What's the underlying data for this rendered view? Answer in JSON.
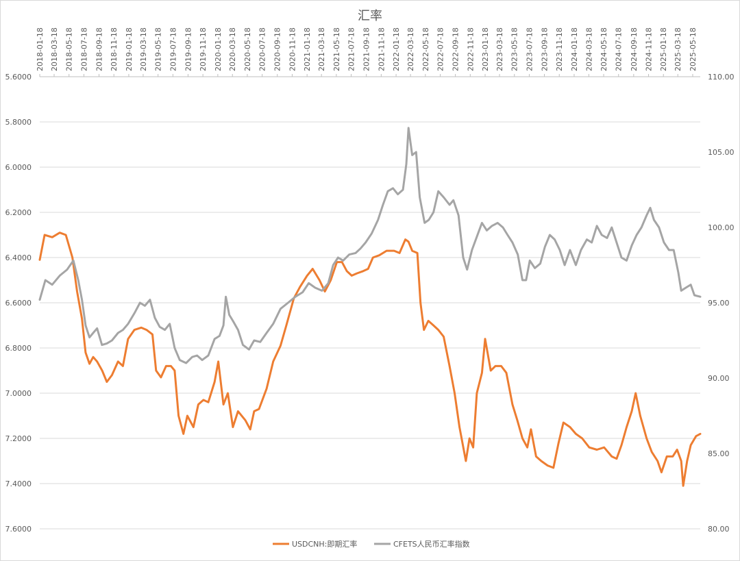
{
  "chart_data": {
    "type": "line",
    "title": "汇率",
    "x_tick_labels": [
      "2018-01-18",
      "2018-03-18",
      "2018-05-18",
      "2018-07-18",
      "2018-09-18",
      "2018-11-18",
      "2019-01-18",
      "2019-03-18",
      "2019-05-18",
      "2019-07-18",
      "2019-09-18",
      "2019-11-18",
      "2020-01-18",
      "2020-03-18",
      "2020-05-18",
      "2020-07-18",
      "2020-09-18",
      "2020-11-18",
      "2021-01-18",
      "2021-03-18",
      "2021-05-18",
      "2021-07-18",
      "2021-09-18",
      "2021-11-18",
      "2022-01-18",
      "2022-03-18",
      "2022-05-18",
      "2022-07-18",
      "2022-09-18",
      "2022-11-18",
      "2023-01-18",
      "2023-03-18",
      "2023-05-18",
      "2023-07-18",
      "2023-09-18",
      "2023-11-18",
      "2024-01-18",
      "2024-03-18",
      "2024-05-18",
      "2024-07-18",
      "2024-09-18",
      "2024-11-18",
      "2025-01-18",
      "2025-03-18",
      "2025-05-18"
    ],
    "x_range": [
      "2018-01-18",
      "2025-06-18"
    ],
    "y_left": {
      "min": 5.6,
      "max": 7.6,
      "step": 0.2,
      "inverted": true,
      "tick_labels": [
        "5.6000",
        "5.8000",
        "6.0000",
        "6.2000",
        "6.4000",
        "6.6000",
        "6.8000",
        "7.0000",
        "7.2000",
        "7.4000",
        "7.6000"
      ]
    },
    "y_right": {
      "min": 80,
      "max": 110,
      "step": 5,
      "tick_labels": [
        "110.00",
        "105.00",
        "100.00",
        "95.00",
        "90.00",
        "85.00",
        "80.00"
      ]
    },
    "grid": true,
    "legend_position": "bottom",
    "series": [
      {
        "name": "USDCNH:即期汇率",
        "axis": "left",
        "color": "#ED7D31",
        "points": [
          [
            "2018-01-18",
            6.41
          ],
          [
            "2018-02-07",
            6.3
          ],
          [
            "2018-03-10",
            6.31
          ],
          [
            "2018-04-10",
            6.29
          ],
          [
            "2018-05-05",
            6.3
          ],
          [
            "2018-06-01",
            6.4
          ],
          [
            "2018-06-20",
            6.55
          ],
          [
            "2018-07-10",
            6.67
          ],
          [
            "2018-07-25",
            6.82
          ],
          [
            "2018-08-10",
            6.87
          ],
          [
            "2018-08-25",
            6.84
          ],
          [
            "2018-09-10",
            6.86
          ],
          [
            "2018-10-01",
            6.9
          ],
          [
            "2018-10-20",
            6.95
          ],
          [
            "2018-11-10",
            6.92
          ],
          [
            "2018-12-05",
            6.86
          ],
          [
            "2018-12-25",
            6.88
          ],
          [
            "2019-01-15",
            6.76
          ],
          [
            "2019-02-10",
            6.72
          ],
          [
            "2019-03-10",
            6.71
          ],
          [
            "2019-04-01",
            6.72
          ],
          [
            "2019-04-25",
            6.74
          ],
          [
            "2019-05-10",
            6.9
          ],
          [
            "2019-05-30",
            6.93
          ],
          [
            "2019-06-20",
            6.88
          ],
          [
            "2019-07-10",
            6.88
          ],
          [
            "2019-07-25",
            6.9
          ],
          [
            "2019-08-10",
            7.1
          ],
          [
            "2019-08-30",
            7.18
          ],
          [
            "2019-09-15",
            7.1
          ],
          [
            "2019-10-10",
            7.15
          ],
          [
            "2019-10-30",
            7.05
          ],
          [
            "2019-11-20",
            7.03
          ],
          [
            "2019-12-10",
            7.04
          ],
          [
            "2020-01-05",
            6.95
          ],
          [
            "2020-01-20",
            6.86
          ],
          [
            "2020-02-10",
            7.05
          ],
          [
            "2020-02-28",
            7.0
          ],
          [
            "2020-03-20",
            7.15
          ],
          [
            "2020-04-10",
            7.08
          ],
          [
            "2020-05-10",
            7.12
          ],
          [
            "2020-05-30",
            7.16
          ],
          [
            "2020-06-15",
            7.08
          ],
          [
            "2020-07-05",
            7.07
          ],
          [
            "2020-08-05",
            6.98
          ],
          [
            "2020-09-01",
            6.86
          ],
          [
            "2020-10-01",
            6.79
          ],
          [
            "2020-10-25",
            6.7
          ],
          [
            "2020-11-25",
            6.58
          ],
          [
            "2020-12-20",
            6.53
          ],
          [
            "2021-01-18",
            6.48
          ],
          [
            "2021-02-10",
            6.45
          ],
          [
            "2021-03-10",
            6.5
          ],
          [
            "2021-04-01",
            6.55
          ],
          [
            "2021-04-25",
            6.5
          ],
          [
            "2021-05-20",
            6.42
          ],
          [
            "2021-06-10",
            6.42
          ],
          [
            "2021-06-30",
            6.46
          ],
          [
            "2021-07-20",
            6.48
          ],
          [
            "2021-08-10",
            6.47
          ],
          [
            "2021-09-05",
            6.46
          ],
          [
            "2021-09-25",
            6.45
          ],
          [
            "2021-10-15",
            6.4
          ],
          [
            "2021-11-10",
            6.39
          ],
          [
            "2021-12-10",
            6.37
          ],
          [
            "2022-01-10",
            6.37
          ],
          [
            "2022-02-01",
            6.38
          ],
          [
            "2022-02-25",
            6.32
          ],
          [
            "2022-03-10",
            6.33
          ],
          [
            "2022-03-25",
            6.37
          ],
          [
            "2022-04-15",
            6.38
          ],
          [
            "2022-04-28",
            6.6
          ],
          [
            "2022-05-12",
            6.72
          ],
          [
            "2022-05-30",
            6.68
          ],
          [
            "2022-06-20",
            6.7
          ],
          [
            "2022-07-10",
            6.72
          ],
          [
            "2022-08-01",
            6.75
          ],
          [
            "2022-08-25",
            6.88
          ],
          [
            "2022-09-15",
            7.0
          ],
          [
            "2022-10-05",
            7.15
          ],
          [
            "2022-10-31",
            7.3
          ],
          [
            "2022-11-15",
            7.2
          ],
          [
            "2022-11-30",
            7.24
          ],
          [
            "2022-12-15",
            7.0
          ],
          [
            "2023-01-05",
            6.91
          ],
          [
            "2023-01-18",
            6.76
          ],
          [
            "2023-02-10",
            6.9
          ],
          [
            "2023-03-01",
            6.88
          ],
          [
            "2023-03-25",
            6.88
          ],
          [
            "2023-04-15",
            6.91
          ],
          [
            "2023-05-10",
            7.05
          ],
          [
            "2023-05-30",
            7.12
          ],
          [
            "2023-06-20",
            7.2
          ],
          [
            "2023-07-10",
            7.24
          ],
          [
            "2023-07-25",
            7.16
          ],
          [
            "2023-08-15",
            7.28
          ],
          [
            "2023-09-05",
            7.3
          ],
          [
            "2023-10-01",
            7.32
          ],
          [
            "2023-10-25",
            7.33
          ],
          [
            "2023-11-15",
            7.22
          ],
          [
            "2023-12-05",
            7.13
          ],
          [
            "2024-01-01",
            7.15
          ],
          [
            "2024-01-25",
            7.18
          ],
          [
            "2024-02-20",
            7.2
          ],
          [
            "2024-03-20",
            7.24
          ],
          [
            "2024-04-20",
            7.25
          ],
          [
            "2024-05-20",
            7.24
          ],
          [
            "2024-06-20",
            7.28
          ],
          [
            "2024-07-10",
            7.29
          ],
          [
            "2024-07-30",
            7.23
          ],
          [
            "2024-08-20",
            7.15
          ],
          [
            "2024-09-10",
            7.08
          ],
          [
            "2024-09-26",
            7.0
          ],
          [
            "2024-10-15",
            7.1
          ],
          [
            "2024-11-10",
            7.2
          ],
          [
            "2024-12-01",
            7.26
          ],
          [
            "2024-12-25",
            7.3
          ],
          [
            "2025-01-10",
            7.35
          ],
          [
            "2025-02-01",
            7.28
          ],
          [
            "2025-02-25",
            7.28
          ],
          [
            "2025-03-15",
            7.25
          ],
          [
            "2025-04-01",
            7.3
          ],
          [
            "2025-04-09",
            7.41
          ],
          [
            "2025-04-25",
            7.3
          ],
          [
            "2025-05-10",
            7.23
          ],
          [
            "2025-06-01",
            7.19
          ],
          [
            "2025-06-18",
            7.18
          ]
        ]
      },
      {
        "name": "CFETS人民币汇率指数",
        "axis": "right",
        "color": "#A5A5A5",
        "points": [
          [
            "2018-01-18",
            95.2
          ],
          [
            "2018-02-10",
            96.5
          ],
          [
            "2018-03-10",
            96.2
          ],
          [
            "2018-04-10",
            96.8
          ],
          [
            "2018-05-10",
            97.2
          ],
          [
            "2018-06-05",
            97.8
          ],
          [
            "2018-06-25",
            96.5
          ],
          [
            "2018-07-10",
            95.2
          ],
          [
            "2018-07-25",
            93.5
          ],
          [
            "2018-08-10",
            92.7
          ],
          [
            "2018-08-25",
            93.0
          ],
          [
            "2018-09-10",
            93.3
          ],
          [
            "2018-09-30",
            92.2
          ],
          [
            "2018-10-20",
            92.3
          ],
          [
            "2018-11-10",
            92.5
          ],
          [
            "2018-12-05",
            93.0
          ],
          [
            "2018-12-25",
            93.2
          ],
          [
            "2019-01-15",
            93.6
          ],
          [
            "2019-02-10",
            94.3
          ],
          [
            "2019-03-05",
            95.0
          ],
          [
            "2019-03-25",
            94.8
          ],
          [
            "2019-04-15",
            95.2
          ],
          [
            "2019-05-05",
            94.0
          ],
          [
            "2019-05-25",
            93.4
          ],
          [
            "2019-06-15",
            93.2
          ],
          [
            "2019-07-05",
            93.6
          ],
          [
            "2019-07-25",
            92.0
          ],
          [
            "2019-08-15",
            91.2
          ],
          [
            "2019-09-10",
            91.0
          ],
          [
            "2019-10-05",
            91.4
          ],
          [
            "2019-10-25",
            91.5
          ],
          [
            "2019-11-15",
            91.2
          ],
          [
            "2019-12-10",
            91.5
          ],
          [
            "2020-01-05",
            92.6
          ],
          [
            "2020-01-25",
            92.8
          ],
          [
            "2020-02-10",
            93.5
          ],
          [
            "2020-02-20",
            95.4
          ],
          [
            "2020-03-05",
            94.2
          ],
          [
            "2020-03-20",
            93.8
          ],
          [
            "2020-04-10",
            93.2
          ],
          [
            "2020-04-30",
            92.2
          ],
          [
            "2020-05-25",
            91.9
          ],
          [
            "2020-06-15",
            92.5
          ],
          [
            "2020-07-10",
            92.4
          ],
          [
            "2020-08-05",
            93.0
          ],
          [
            "2020-09-01",
            93.6
          ],
          [
            "2020-10-01",
            94.6
          ],
          [
            "2020-11-01",
            95.0
          ],
          [
            "2020-12-01",
            95.4
          ],
          [
            "2020-12-31",
            95.7
          ],
          [
            "2021-01-25",
            96.3
          ],
          [
            "2021-02-20",
            96.0
          ],
          [
            "2021-03-20",
            95.8
          ],
          [
            "2021-04-15",
            96.3
          ],
          [
            "2021-05-05",
            97.5
          ],
          [
            "2021-05-25",
            98.0
          ],
          [
            "2021-06-15",
            97.8
          ],
          [
            "2021-07-10",
            98.2
          ],
          [
            "2021-08-05",
            98.3
          ],
          [
            "2021-08-25",
            98.6
          ],
          [
            "2021-09-15",
            99.0
          ],
          [
            "2021-10-10",
            99.6
          ],
          [
            "2021-11-05",
            100.5
          ],
          [
            "2021-11-25",
            101.5
          ],
          [
            "2021-12-15",
            102.4
          ],
          [
            "2022-01-05",
            102.6
          ],
          [
            "2022-01-25",
            102.2
          ],
          [
            "2022-02-15",
            102.5
          ],
          [
            "2022-03-01",
            104.2
          ],
          [
            "2022-03-10",
            106.6
          ],
          [
            "2022-03-25",
            104.8
          ],
          [
            "2022-04-10",
            105.0
          ],
          [
            "2022-04-25",
            102.0
          ],
          [
            "2022-05-15",
            100.3
          ],
          [
            "2022-06-01",
            100.5
          ],
          [
            "2022-06-20",
            101.0
          ],
          [
            "2022-07-10",
            102.4
          ],
          [
            "2022-08-01",
            102.0
          ],
          [
            "2022-08-25",
            101.5
          ],
          [
            "2022-09-10",
            101.8
          ],
          [
            "2022-10-01",
            100.8
          ],
          [
            "2022-10-20",
            98.0
          ],
          [
            "2022-11-05",
            97.2
          ],
          [
            "2022-11-25",
            98.5
          ],
          [
            "2022-12-20",
            99.6
          ],
          [
            "2023-01-05",
            100.3
          ],
          [
            "2023-01-25",
            99.8
          ],
          [
            "2023-02-15",
            100.1
          ],
          [
            "2023-03-10",
            100.3
          ],
          [
            "2023-04-01",
            100.0
          ],
          [
            "2023-04-20",
            99.5
          ],
          [
            "2023-05-10",
            99.0
          ],
          [
            "2023-06-01",
            98.2
          ],
          [
            "2023-06-20",
            96.5
          ],
          [
            "2023-07-05",
            96.5
          ],
          [
            "2023-07-20",
            97.8
          ],
          [
            "2023-08-10",
            97.3
          ],
          [
            "2023-09-01",
            97.6
          ],
          [
            "2023-09-20",
            98.7
          ],
          [
            "2023-10-10",
            99.5
          ],
          [
            "2023-10-30",
            99.2
          ],
          [
            "2023-11-20",
            98.5
          ],
          [
            "2023-12-10",
            97.5
          ],
          [
            "2024-01-01",
            98.5
          ],
          [
            "2024-01-25",
            97.5
          ],
          [
            "2024-02-15",
            98.5
          ],
          [
            "2024-03-10",
            99.2
          ],
          [
            "2024-03-30",
            99.0
          ],
          [
            "2024-04-20",
            100.1
          ],
          [
            "2024-05-10",
            99.5
          ],
          [
            "2024-06-01",
            99.3
          ],
          [
            "2024-06-20",
            100.0
          ],
          [
            "2024-07-10",
            99.0
          ],
          [
            "2024-07-30",
            98.0
          ],
          [
            "2024-08-20",
            97.8
          ],
          [
            "2024-09-10",
            98.8
          ],
          [
            "2024-09-30",
            99.5
          ],
          [
            "2024-10-20",
            100.0
          ],
          [
            "2024-11-10",
            100.8
          ],
          [
            "2024-11-25",
            101.3
          ],
          [
            "2024-12-10",
            100.5
          ],
          [
            "2024-12-31",
            100.0
          ],
          [
            "2025-01-20",
            99.0
          ],
          [
            "2025-02-10",
            98.5
          ],
          [
            "2025-03-01",
            98.5
          ],
          [
            "2025-03-20",
            97.0
          ],
          [
            "2025-04-01",
            95.8
          ],
          [
            "2025-04-20",
            96.0
          ],
          [
            "2025-05-10",
            96.2
          ],
          [
            "2025-05-25",
            95.5
          ],
          [
            "2025-06-18",
            95.4
          ]
        ]
      }
    ]
  }
}
